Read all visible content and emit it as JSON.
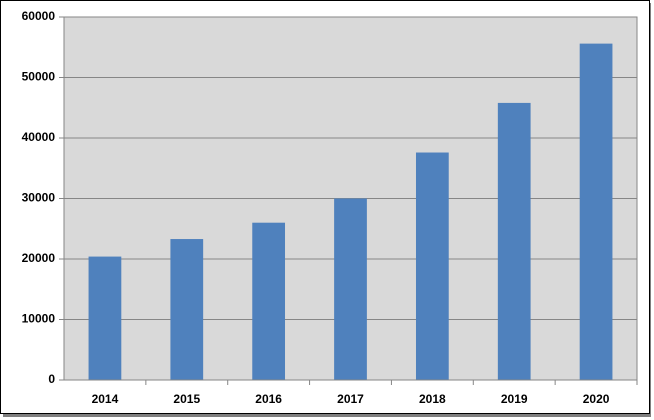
{
  "chart_data": {
    "type": "bar",
    "categories": [
      "2014",
      "2015",
      "2016",
      "2017",
      "2018",
      "2019",
      "2020"
    ],
    "values": [
      20400,
      23300,
      26000,
      30000,
      37600,
      45800,
      55600
    ],
    "color": "#4f81bd",
    "ylim": [
      0,
      60000
    ],
    "yticks": [
      0,
      10000,
      20000,
      30000,
      40000,
      50000,
      60000
    ],
    "grid": true
  }
}
